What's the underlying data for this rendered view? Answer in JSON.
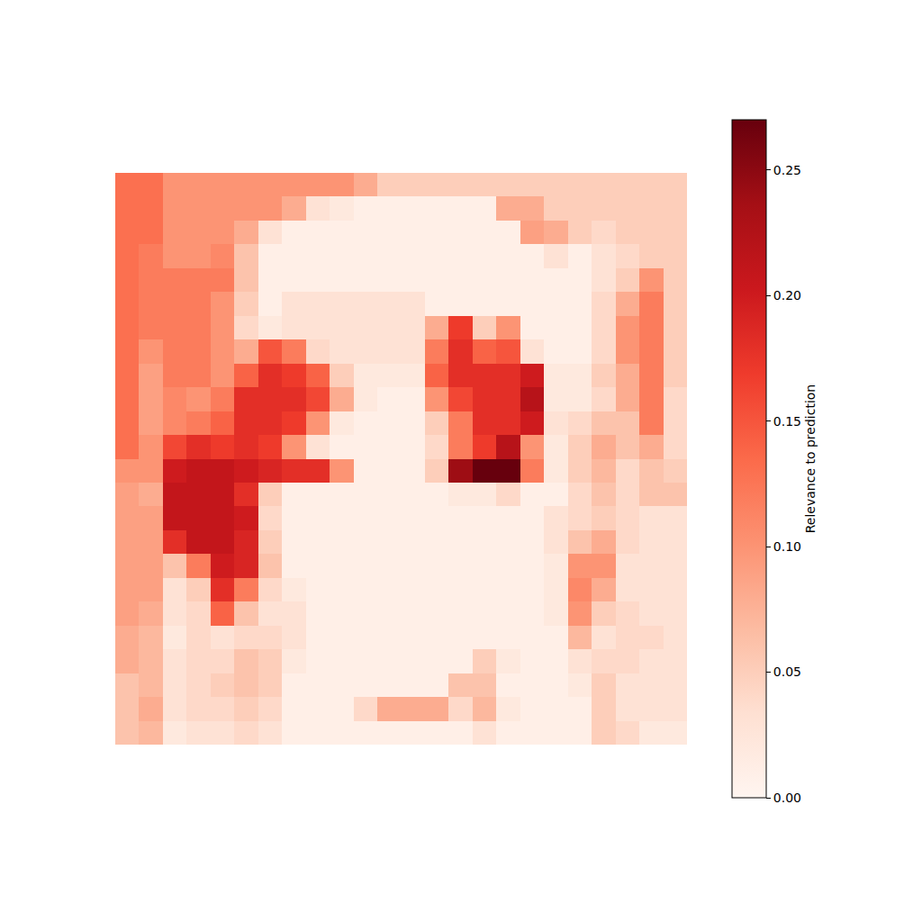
{
  "chart_data": {
    "type": "heatmap",
    "tick_labels": false,
    "colorbar_label": "Relevance to prediction",
    "colorbar_range": [
      0,
      0.27
    ],
    "colorbar_ticks": [
      {
        "value": 0,
        "label": "0.00"
      },
      {
        "value": 0.05,
        "label": "0.05"
      },
      {
        "value": 0.1,
        "label": "0.10"
      },
      {
        "value": 0.15,
        "label": "0.15"
      },
      {
        "value": 0.2,
        "label": "0.20"
      },
      {
        "value": 0.25,
        "label": "0.25"
      }
    ],
    "cells": [
      [
        0.13,
        0.13,
        0.1,
        0.1,
        0.1,
        0.1,
        0.1,
        0.1,
        0.1,
        0.1,
        0.08,
        0.05,
        0.05,
        0.05,
        0.05,
        0.05,
        0.05,
        0.05,
        0.05,
        0.05,
        0.05,
        0.05,
        0.05,
        0.05
      ],
      [
        0.13,
        0.13,
        0.1,
        0.1,
        0.1,
        0.1,
        0.1,
        0.08,
        0.03,
        0.02,
        0.01,
        0.01,
        0.01,
        0.01,
        0.01,
        0.01,
        0.08,
        0.08,
        0.05,
        0.05,
        0.05,
        0.05,
        0.05,
        0.05
      ],
      [
        0.13,
        0.13,
        0.1,
        0.1,
        0.1,
        0.08,
        0.03,
        0.01,
        0.01,
        0.01,
        0.01,
        0.01,
        0.01,
        0.01,
        0.01,
        0.01,
        0.01,
        0.09,
        0.08,
        0.05,
        0.04,
        0.05,
        0.05,
        0.05
      ],
      [
        0.13,
        0.12,
        0.1,
        0.1,
        0.11,
        0.06,
        0.01,
        0.01,
        0.01,
        0.01,
        0.01,
        0.01,
        0.01,
        0.01,
        0.01,
        0.01,
        0.01,
        0.01,
        0.03,
        0.01,
        0.03,
        0.04,
        0.05,
        0.05
      ],
      [
        0.13,
        0.12,
        0.12,
        0.12,
        0.12,
        0.06,
        0.01,
        0.01,
        0.01,
        0.01,
        0.01,
        0.01,
        0.01,
        0.01,
        0.01,
        0.01,
        0.01,
        0.01,
        0.01,
        0.01,
        0.03,
        0.05,
        0.1,
        0.05
      ],
      [
        0.13,
        0.12,
        0.12,
        0.12,
        0.1,
        0.05,
        0.01,
        0.03,
        0.03,
        0.03,
        0.03,
        0.03,
        0.03,
        0.01,
        0.01,
        0.01,
        0.01,
        0.01,
        0.01,
        0.01,
        0.04,
        0.08,
        0.12,
        0.05
      ],
      [
        0.13,
        0.12,
        0.12,
        0.12,
        0.1,
        0.04,
        0.02,
        0.03,
        0.03,
        0.03,
        0.03,
        0.03,
        0.03,
        0.08,
        0.17,
        0.05,
        0.1,
        0.01,
        0.01,
        0.01,
        0.04,
        0.1,
        0.12,
        0.05
      ],
      [
        0.13,
        0.1,
        0.12,
        0.12,
        0.1,
        0.08,
        0.15,
        0.12,
        0.04,
        0.03,
        0.03,
        0.03,
        0.03,
        0.12,
        0.18,
        0.14,
        0.15,
        0.03,
        0.01,
        0.01,
        0.04,
        0.1,
        0.12,
        0.05
      ],
      [
        0.13,
        0.09,
        0.12,
        0.12,
        0.1,
        0.14,
        0.18,
        0.17,
        0.14,
        0.05,
        0.02,
        0.02,
        0.02,
        0.14,
        0.18,
        0.18,
        0.18,
        0.2,
        0.02,
        0.02,
        0.05,
        0.08,
        0.12,
        0.05
      ],
      [
        0.13,
        0.09,
        0.11,
        0.1,
        0.12,
        0.18,
        0.18,
        0.18,
        0.16,
        0.08,
        0.02,
        0.01,
        0.01,
        0.1,
        0.16,
        0.18,
        0.18,
        0.22,
        0.02,
        0.02,
        0.04,
        0.08,
        0.12,
        0.04
      ],
      [
        0.13,
        0.09,
        0.11,
        0.12,
        0.14,
        0.18,
        0.18,
        0.17,
        0.1,
        0.02,
        0.01,
        0.01,
        0.01,
        0.05,
        0.12,
        0.18,
        0.18,
        0.2,
        0.03,
        0.04,
        0.06,
        0.06,
        0.12,
        0.04
      ],
      [
        0.13,
        0.1,
        0.16,
        0.18,
        0.17,
        0.18,
        0.17,
        0.1,
        0.03,
        0.01,
        0.01,
        0.01,
        0.01,
        0.04,
        0.12,
        0.17,
        0.22,
        0.1,
        0.02,
        0.05,
        0.08,
        0.06,
        0.08,
        0.04
      ],
      [
        0.1,
        0.1,
        0.2,
        0.21,
        0.21,
        0.2,
        0.19,
        0.18,
        0.18,
        0.1,
        0.01,
        0.01,
        0.01,
        0.05,
        0.24,
        0.27,
        0.27,
        0.12,
        0.02,
        0.05,
        0.07,
        0.04,
        0.06,
        0.05
      ],
      [
        0.09,
        0.08,
        0.21,
        0.21,
        0.21,
        0.18,
        0.05,
        0.01,
        0.01,
        0.01,
        0.01,
        0.01,
        0.01,
        0.01,
        0.02,
        0.02,
        0.04,
        0.01,
        0.01,
        0.04,
        0.06,
        0.04,
        0.06,
        0.06
      ],
      [
        0.09,
        0.09,
        0.21,
        0.21,
        0.21,
        0.2,
        0.04,
        0.01,
        0.01,
        0.01,
        0.01,
        0.01,
        0.01,
        0.01,
        0.01,
        0.01,
        0.01,
        0.01,
        0.03,
        0.04,
        0.05,
        0.04,
        0.03,
        0.03
      ],
      [
        0.09,
        0.09,
        0.18,
        0.21,
        0.21,
        0.19,
        0.05,
        0.01,
        0.01,
        0.01,
        0.01,
        0.01,
        0.01,
        0.01,
        0.01,
        0.01,
        0.01,
        0.01,
        0.03,
        0.06,
        0.08,
        0.04,
        0.03,
        0.03
      ],
      [
        0.09,
        0.09,
        0.06,
        0.12,
        0.2,
        0.19,
        0.06,
        0.01,
        0.01,
        0.01,
        0.01,
        0.01,
        0.01,
        0.01,
        0.01,
        0.01,
        0.01,
        0.01,
        0.02,
        0.1,
        0.1,
        0.03,
        0.03,
        0.03
      ],
      [
        0.09,
        0.09,
        0.03,
        0.05,
        0.18,
        0.12,
        0.04,
        0.02,
        0.01,
        0.01,
        0.01,
        0.01,
        0.01,
        0.01,
        0.01,
        0.01,
        0.01,
        0.01,
        0.02,
        0.11,
        0.08,
        0.03,
        0.03,
        0.03
      ],
      [
        0.09,
        0.08,
        0.03,
        0.04,
        0.14,
        0.06,
        0.03,
        0.03,
        0.01,
        0.01,
        0.01,
        0.01,
        0.01,
        0.01,
        0.01,
        0.01,
        0.01,
        0.01,
        0.02,
        0.1,
        0.05,
        0.04,
        0.03,
        0.03
      ],
      [
        0.08,
        0.07,
        0.02,
        0.04,
        0.03,
        0.04,
        0.04,
        0.03,
        0.01,
        0.01,
        0.01,
        0.01,
        0.01,
        0.01,
        0.01,
        0.01,
        0.01,
        0.01,
        0.01,
        0.07,
        0.03,
        0.04,
        0.04,
        0.03
      ],
      [
        0.08,
        0.07,
        0.03,
        0.04,
        0.04,
        0.06,
        0.05,
        0.02,
        0.01,
        0.01,
        0.01,
        0.01,
        0.01,
        0.01,
        0.01,
        0.05,
        0.02,
        0.01,
        0.01,
        0.03,
        0.04,
        0.04,
        0.03,
        0.03
      ],
      [
        0.06,
        0.07,
        0.03,
        0.04,
        0.05,
        0.06,
        0.05,
        0.01,
        0.01,
        0.01,
        0.01,
        0.01,
        0.01,
        0.01,
        0.06,
        0.06,
        0.01,
        0.01,
        0.01,
        0.02,
        0.05,
        0.03,
        0.03,
        0.03
      ],
      [
        0.06,
        0.08,
        0.03,
        0.04,
        0.04,
        0.05,
        0.04,
        0.01,
        0.01,
        0.01,
        0.04,
        0.08,
        0.08,
        0.08,
        0.04,
        0.07,
        0.02,
        0.01,
        0.01,
        0.01,
        0.05,
        0.03,
        0.03,
        0.03
      ],
      [
        0.06,
        0.07,
        0.02,
        0.03,
        0.03,
        0.04,
        0.03,
        0.01,
        0.01,
        0.01,
        0.01,
        0.01,
        0.01,
        0.01,
        0.01,
        0.03,
        0.01,
        0.01,
        0.01,
        0.01,
        0.05,
        0.04,
        0.02,
        0.02
      ]
    ]
  }
}
